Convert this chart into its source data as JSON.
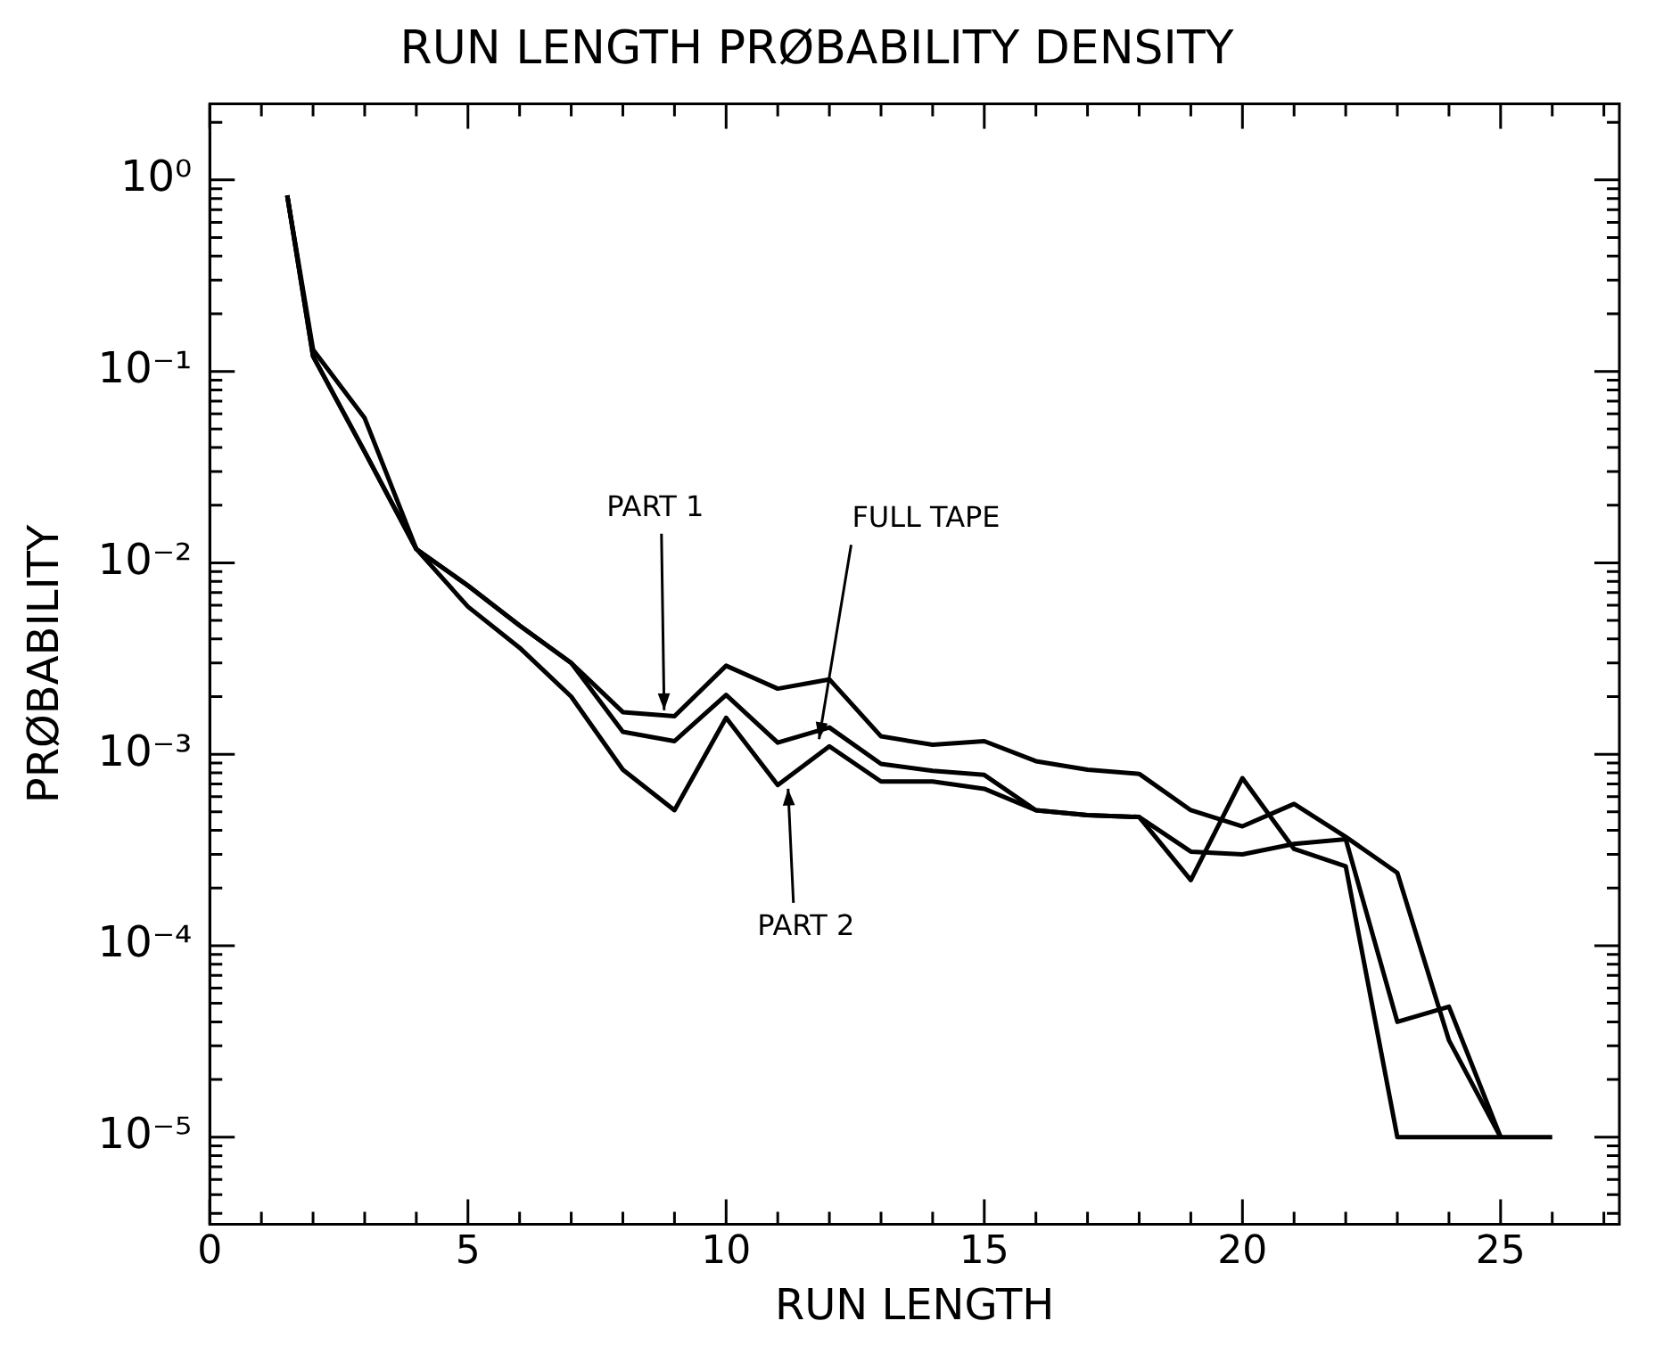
{
  "chart_data": {
    "type": "line",
    "title": "RUN LENGTH PRØBABILITY DENSITY",
    "xlabel": "RUN LENGTH",
    "ylabel": "PRØBABILITY",
    "log": "y",
    "grid": false,
    "legend": false,
    "marker": "none",
    "line_style": "solid",
    "xlim": [
      0,
      27.3
    ],
    "xticks": [
      0,
      {
        "value": 1,
        "label": null
      },
      {
        "value": 2,
        "label": null
      },
      {
        "value": 3,
        "label": null
      },
      {
        "value": 4,
        "label": null
      },
      5,
      {
        "value": 6,
        "label": null
      },
      {
        "value": 7,
        "label": null
      },
      {
        "value": 8,
        "label": null
      },
      {
        "value": 9,
        "label": null
      },
      10,
      {
        "value": 11,
        "label": null
      },
      {
        "value": 12,
        "label": null
      },
      {
        "value": 13,
        "label": null
      },
      {
        "value": 14,
        "label": null
      },
      15,
      {
        "value": 16,
        "label": null
      },
      {
        "value": 17,
        "label": null
      },
      {
        "value": 18,
        "label": null
      },
      {
        "value": 19,
        "label": null
      },
      20,
      {
        "value": 21,
        "label": null
      },
      {
        "value": 22,
        "label": null
      },
      {
        "value": 23,
        "label": null
      },
      {
        "value": 24,
        "label": null
      },
      25,
      {
        "value": 26,
        "label": null
      },
      {
        "value": 27,
        "label": null
      }
    ],
    "ylim": [
      3.5e-06,
      2.5
    ],
    "yticks": [
      {
        "value": 4e-06,
        "label": null
      },
      {
        "value": 5e-06,
        "label": null
      },
      {
        "value": 6e-06,
        "label": null
      },
      {
        "value": 7e-06,
        "label": null
      },
      {
        "value": 8e-06,
        "label": null
      },
      {
        "value": 9e-06,
        "label": null
      },
      {
        "value": 1e-05,
        "label": "10⁻⁵"
      },
      {
        "value": 2e-05,
        "label": null
      },
      {
        "value": 3e-05,
        "label": null
      },
      {
        "value": 4e-05,
        "label": null
      },
      {
        "value": 5e-05,
        "label": null
      },
      {
        "value": 6e-05,
        "label": null
      },
      {
        "value": 7e-05,
        "label": null
      },
      {
        "value": 8e-05,
        "label": null
      },
      {
        "value": 9e-05,
        "label": null
      },
      {
        "value": 0.0001,
        "label": "10⁻⁴"
      },
      {
        "value": 0.0002,
        "label": null
      },
      {
        "value": 0.0003,
        "label": null
      },
      {
        "value": 0.0004,
        "label": null
      },
      {
        "value": 0.0005,
        "label": null
      },
      {
        "value": 0.0006,
        "label": null
      },
      {
        "value": 0.0007,
        "label": null
      },
      {
        "value": 0.0008,
        "label": null
      },
      {
        "value": 0.0009,
        "label": null
      },
      {
        "value": 0.001,
        "label": "10⁻³"
      },
      {
        "value": 0.002,
        "label": null
      },
      {
        "value": 0.003,
        "label": null
      },
      {
        "value": 0.004,
        "label": null
      },
      {
        "value": 0.005,
        "label": null
      },
      {
        "value": 0.006,
        "label": null
      },
      {
        "value": 0.007,
        "label": null
      },
      {
        "value": 0.008,
        "label": null
      },
      {
        "value": 0.009,
        "label": null
      },
      {
        "value": 0.01,
        "label": "10⁻²"
      },
      {
        "value": 0.02,
        "label": null
      },
      {
        "value": 0.03,
        "label": null
      },
      {
        "value": 0.04,
        "label": null
      },
      {
        "value": 0.05,
        "label": null
      },
      {
        "value": 0.06,
        "label": null
      },
      {
        "value": 0.07,
        "label": null
      },
      {
        "value": 0.08,
        "label": null
      },
      {
        "value": 0.09,
        "label": null
      },
      {
        "value": 0.1,
        "label": "10⁻¹"
      },
      {
        "value": 0.2,
        "label": null
      },
      {
        "value": 0.3,
        "label": null
      },
      {
        "value": 0.4,
        "label": null
      },
      {
        "value": 0.5,
        "label": null
      },
      {
        "value": 0.6,
        "label": null
      },
      {
        "value": 0.7,
        "label": null
      },
      {
        "value": 0.8,
        "label": null
      },
      {
        "value": 0.9,
        "label": null
      },
      {
        "value": 1,
        "label": "10⁰"
      },
      {
        "value": 2,
        "label": null
      }
    ],
    "series": [
      {
        "color": "#000000",
        "x": [
          1.5,
          2,
          3,
          4,
          5,
          6,
          7,
          8,
          9,
          10,
          11,
          12,
          13,
          14,
          15,
          16,
          17,
          18,
          19,
          20,
          21,
          22,
          23,
          24,
          25
        ],
        "values": [
          0.83,
          0.13,
          0.057,
          0.0118,
          0.0076,
          0.0047,
          0.003,
          0.00166,
          0.00158,
          0.0029,
          0.0022,
          0.00246,
          0.00124,
          0.00112,
          0.00117,
          0.00092,
          0.00083,
          0.00079,
          0.00051,
          0.00042,
          0.00055,
          0.00037,
          0.00024,
          3.2e-05,
          1e-05
        ]
      },
      {
        "color": "#000000",
        "x": [
          1.5,
          2,
          3,
          4,
          5,
          6,
          7,
          8,
          9,
          10,
          11,
          12,
          13,
          14,
          15,
          16,
          17,
          18,
          19,
          20,
          21,
          22,
          23,
          24,
          25
        ],
        "values": [
          0.83,
          0.12,
          0.038,
          0.0118,
          0.0076,
          0.0047,
          0.003,
          0.00131,
          0.00117,
          0.00204,
          0.00115,
          0.00138,
          0.00089,
          0.00082,
          0.00078,
          0.00051,
          0.00048,
          0.00047,
          0.00031,
          0.0003,
          0.00034,
          0.00036,
          4e-05,
          4.8e-05,
          1e-05
        ]
      },
      {
        "color": "#000000",
        "x": [
          1.5,
          2,
          3,
          4,
          5,
          6,
          7,
          8,
          9,
          10,
          11,
          12,
          13,
          14,
          15,
          16,
          17,
          18,
          19,
          20,
          21,
          22,
          23,
          24,
          25,
          26
        ],
        "values": [
          0.83,
          0.12,
          0.038,
          0.0118,
          0.0059,
          0.0036,
          0.002,
          0.00083,
          0.00051,
          0.00155,
          0.00069,
          0.0011,
          0.00072,
          0.00072,
          0.00066,
          0.00051,
          0.00048,
          0.00047,
          0.00022,
          0.00075,
          0.00032,
          0.00026,
          1e-05,
          1e-05,
          1e-05,
          1e-05
        ]
      }
    ],
    "annotations": [
      {
        "text": "PART 1",
        "x": 8.8,
        "y": 0.0017
      },
      {
        "text": "FULL TAPE",
        "x": 11.8,
        "y": 0.0012
      },
      {
        "text": "PART 2",
        "x": 11.2,
        "y": 0.00066
      }
    ]
  }
}
